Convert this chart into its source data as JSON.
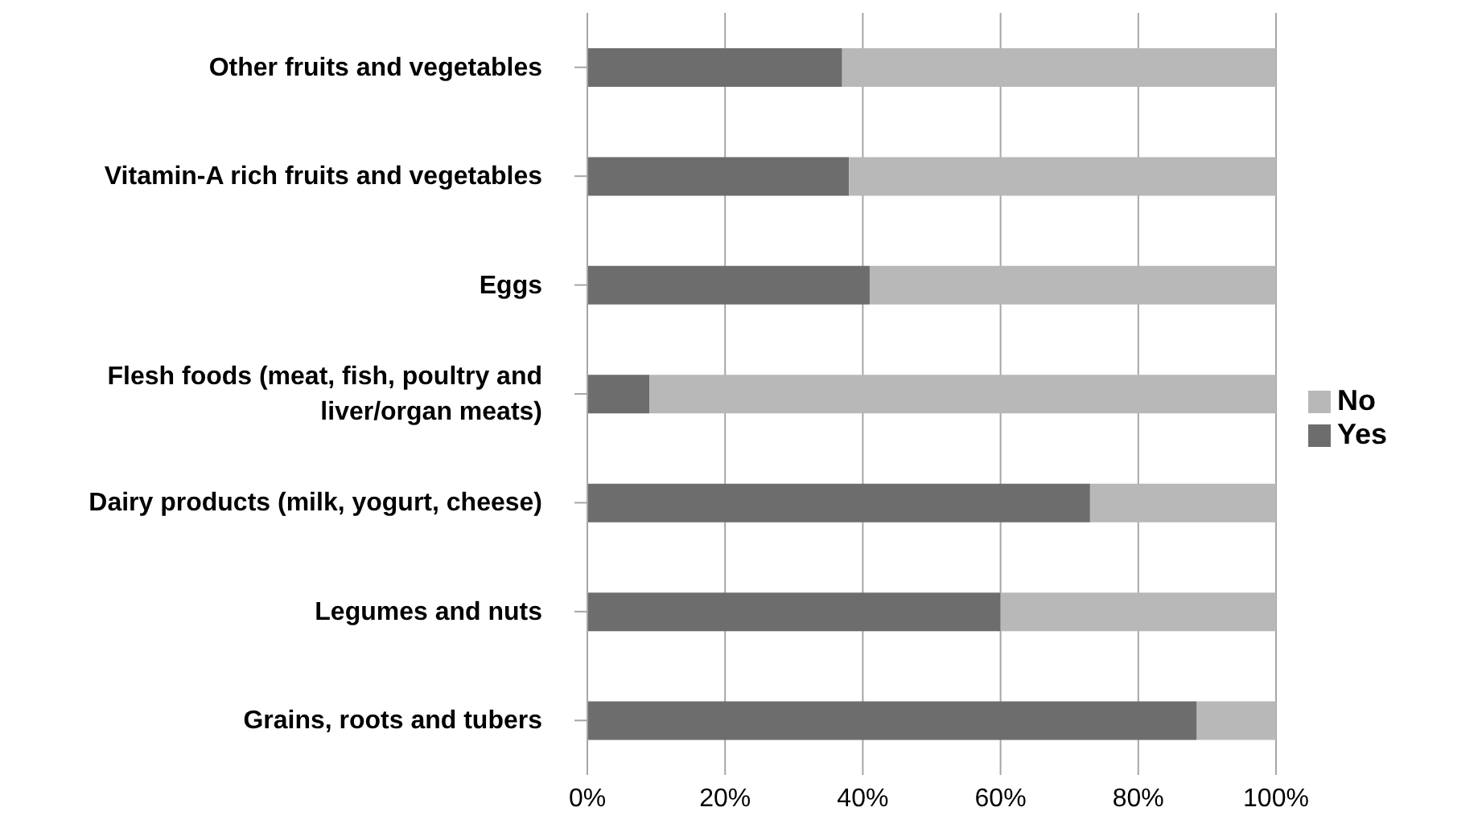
{
  "chart_data": {
    "type": "bar",
    "orientation": "horizontal",
    "stacked": true,
    "categories": [
      "Other fruits and vegetables",
      "Vitamin-A rich fruits and vegetables",
      "Eggs",
      "Flesh foods (meat, fish, poultry and liver/organ meats)",
      "Dairy products (milk, yogurt, cheese)",
      "Legumes and nuts",
      "Grains, roots and tubers"
    ],
    "series": [
      {
        "name": "Yes",
        "color": "#6d6d6d",
        "values": [
          37,
          38,
          41,
          9,
          73,
          60,
          88.5
        ]
      },
      {
        "name": "No",
        "color": "#b8b8b8",
        "values": [
          63,
          62,
          59,
          91,
          27,
          40,
          11.5
        ]
      }
    ],
    "xlim": [
      0,
      100
    ],
    "xticks": [
      {
        "value": 0,
        "label": "0%"
      },
      {
        "value": 20,
        "label": "20%"
      },
      {
        "value": 40,
        "label": "40%"
      },
      {
        "value": 60,
        "label": "60%"
      },
      {
        "value": 80,
        "label": "80%"
      },
      {
        "value": 100,
        "label": "100%"
      }
    ],
    "grid": "x",
    "legend": "right"
  }
}
